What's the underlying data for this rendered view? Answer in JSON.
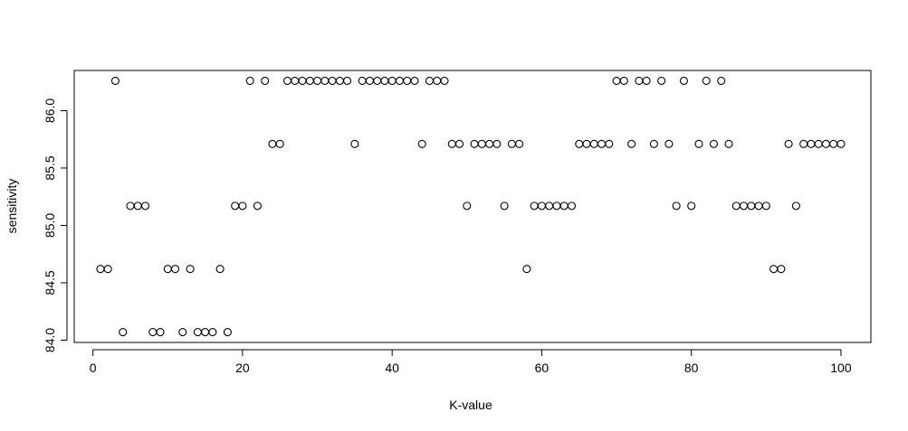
{
  "chart_data": {
    "type": "scatter",
    "xlabel": "K-value",
    "ylabel": "sensitivity",
    "xlim": [
      -2.5,
      104
    ],
    "ylim": [
      83.98,
      86.35
    ],
    "xticks": [
      0,
      20,
      40,
      60,
      80,
      100
    ],
    "yticks": [
      84.0,
      84.5,
      85.0,
      85.5,
      86.0
    ],
    "ytick_labels": [
      "84.0",
      "84.5",
      "85.0",
      "85.5",
      "86.0"
    ],
    "grid": false,
    "legend": "none",
    "marker": "open-circle",
    "point_color": "#000000",
    "x": [
      1,
      2,
      3,
      4,
      5,
      6,
      7,
      8,
      9,
      10,
      11,
      12,
      13,
      14,
      15,
      16,
      17,
      18,
      19,
      20,
      21,
      22,
      23,
      24,
      25,
      26,
      27,
      28,
      29,
      30,
      31,
      32,
      33,
      34,
      35,
      36,
      37,
      38,
      39,
      40,
      41,
      42,
      43,
      44,
      45,
      46,
      47,
      48,
      49,
      50,
      51,
      52,
      53,
      54,
      55,
      56,
      57,
      58,
      59,
      60,
      61,
      62,
      63,
      64,
      65,
      66,
      67,
      68,
      69,
      70,
      71,
      72,
      73,
      74,
      75,
      76,
      77,
      78,
      79,
      80,
      81,
      82,
      83,
      84,
      85,
      86,
      87,
      88,
      89,
      90,
      91,
      92,
      93,
      94,
      95,
      96,
      97,
      98,
      99,
      100
    ],
    "y": [
      84.62,
      84.62,
      86.26,
      84.07,
      85.17,
      85.17,
      85.17,
      84.07,
      84.07,
      84.62,
      84.62,
      84.07,
      84.62,
      84.07,
      84.07,
      84.07,
      84.62,
      84.07,
      85.17,
      85.17,
      86.26,
      85.17,
      86.26,
      85.71,
      85.71,
      86.26,
      86.26,
      86.26,
      86.26,
      86.26,
      86.26,
      86.26,
      86.26,
      86.26,
      85.71,
      86.26,
      86.26,
      86.26,
      86.26,
      86.26,
      86.26,
      86.26,
      86.26,
      85.71,
      86.26,
      86.26,
      86.26,
      85.71,
      85.71,
      85.17,
      85.71,
      85.71,
      85.71,
      85.71,
      85.17,
      85.71,
      85.71,
      84.62,
      85.17,
      85.17,
      85.17,
      85.17,
      85.17,
      85.17,
      85.71,
      85.71,
      85.71,
      85.71,
      85.71,
      86.26,
      86.26,
      85.71,
      86.26,
      86.26,
      85.71,
      86.26,
      85.71,
      85.17,
      86.26,
      85.17,
      85.71,
      86.26,
      85.71,
      86.26,
      85.71,
      85.17,
      85.17,
      85.17,
      85.17,
      85.17,
      84.62,
      84.62,
      85.71,
      85.17,
      85.71,
      85.71,
      85.71,
      85.71,
      85.71,
      85.71
    ]
  }
}
